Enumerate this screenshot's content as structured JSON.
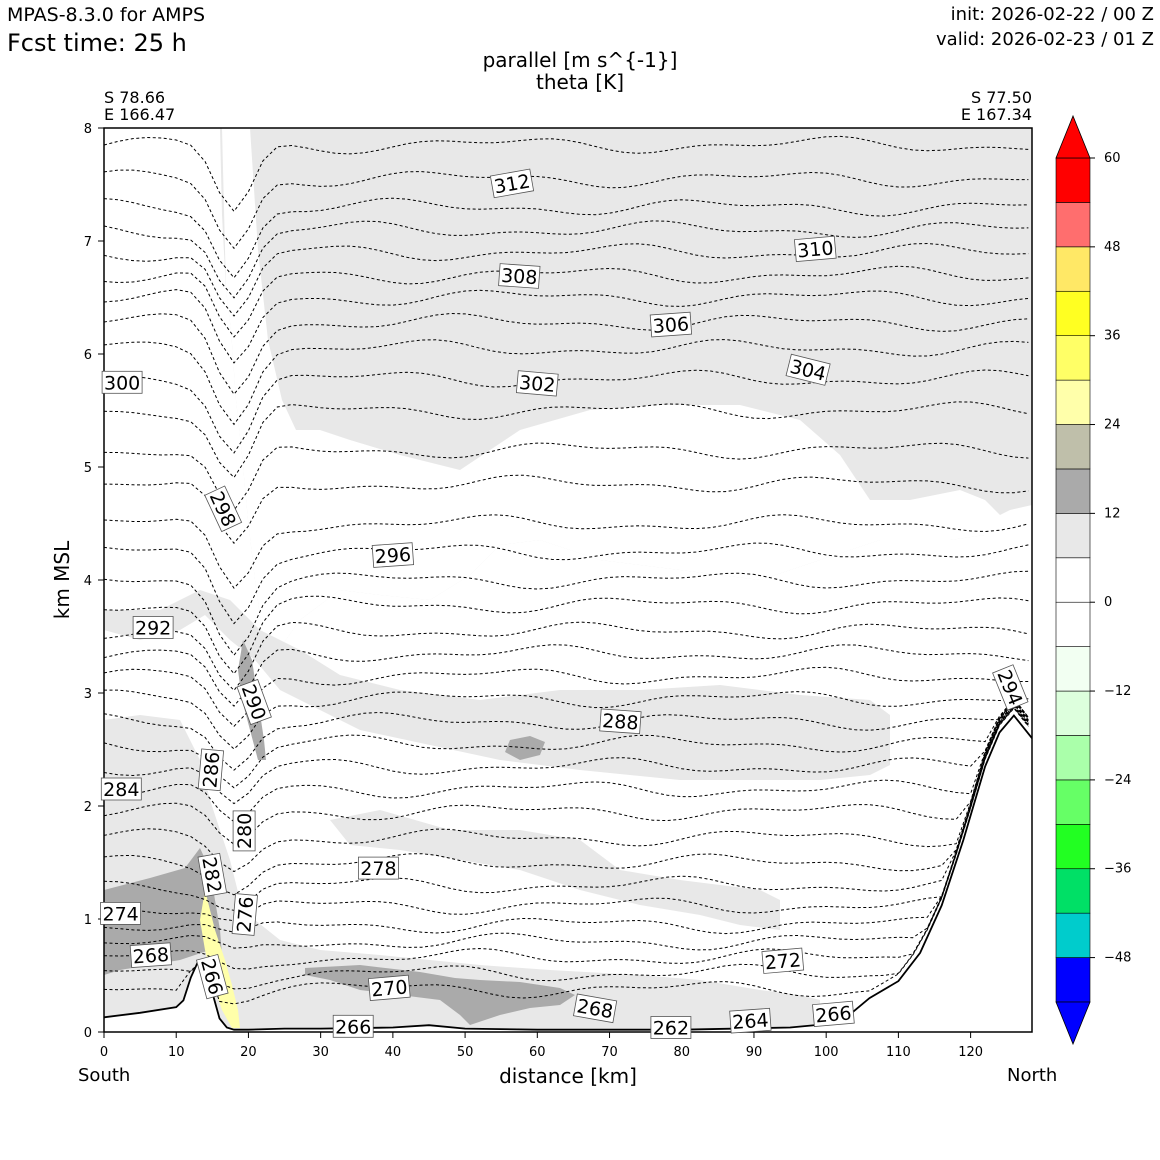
{
  "header": {
    "model": "MPAS-8.3.0 for AMPS",
    "fcst_time": "Fcst time:   25 h",
    "init": "init: 2026-02-22 / 00 Z",
    "valid": "valid: 2026-02-23 / 01 Z"
  },
  "chart_data": {
    "type": "contour",
    "title": "parallel [m s^{-1}]",
    "subtitle": "theta [K]",
    "xlabel": "distance [km]",
    "ylabel": "km MSL",
    "xlim": [
      0,
      128.5
    ],
    "ylim": [
      0,
      8
    ],
    "xticks": [
      0,
      10,
      20,
      30,
      40,
      50,
      60,
      70,
      80,
      90,
      100,
      110,
      120
    ],
    "yticks": [
      0,
      1,
      2,
      3,
      4,
      5,
      6,
      7,
      8
    ],
    "endpoints": {
      "left": {
        "lat": "S 78.66",
        "lon": "E 166.47",
        "direction": "South"
      },
      "right": {
        "lat": "S 77.50",
        "lon": "E 167.34",
        "direction": "North"
      }
    },
    "colorbar": {
      "ticks": [
        "60",
        "48",
        "36",
        "24",
        "12",
        "0",
        "−12",
        "−24",
        "−36",
        "−48"
      ],
      "tick_values": [
        60,
        48,
        36,
        24,
        12,
        0,
        -12,
        -24,
        -36,
        -48
      ],
      "levels": [
        -54,
        -48,
        -42,
        -36,
        -30,
        -24,
        -18,
        -12,
        -6,
        0,
        6,
        12,
        18,
        24,
        30,
        36,
        42,
        48,
        54,
        60
      ],
      "colors": [
        "#0000ff",
        "#00cccc",
        "#00e066",
        "#22ff22",
        "#66ff66",
        "#aaffaa",
        "#ddffdd",
        "#f2fff2",
        "#ffffff",
        "#ffffff",
        "#e8e8e8",
        "#aaaaaa",
        "#bfbfaa",
        "#ffffaa",
        "#ffff66",
        "#ffff22",
        "#ffe866",
        "#ff6e6e",
        "#ff0000"
      ],
      "extend_low": "#0000ff",
      "extend_high": "#ff0000"
    },
    "terrain": [
      [
        0,
        0.13
      ],
      [
        5,
        0.17
      ],
      [
        10,
        0.22
      ],
      [
        11,
        0.28
      ],
      [
        12,
        0.48
      ],
      [
        13,
        0.62
      ],
      [
        14,
        0.58
      ],
      [
        15,
        0.35
      ],
      [
        16,
        0.12
      ],
      [
        17,
        0.04
      ],
      [
        18,
        0.02
      ],
      [
        20,
        0.02
      ],
      [
        25,
        0.03
      ],
      [
        30,
        0.03
      ],
      [
        40,
        0.04
      ],
      [
        45,
        0.06
      ],
      [
        50,
        0.03
      ],
      [
        60,
        0.02
      ],
      [
        80,
        0.02
      ],
      [
        95,
        0.04
      ],
      [
        100,
        0.07
      ],
      [
        103,
        0.14
      ],
      [
        106,
        0.3
      ],
      [
        110,
        0.45
      ],
      [
        113,
        0.7
      ],
      [
        116,
        1.12
      ],
      [
        119,
        1.7
      ],
      [
        122,
        2.35
      ],
      [
        124,
        2.65
      ],
      [
        126,
        2.8
      ],
      [
        128.5,
        2.6
      ]
    ],
    "theta_labels": [
      {
        "value": "312",
        "x": 56.5,
        "y": 7.51,
        "angle": -10
      },
      {
        "value": "310",
        "x": 98.5,
        "y": 6.93,
        "angle": -5
      },
      {
        "value": "308",
        "x": 57.5,
        "y": 6.69,
        "angle": 4
      },
      {
        "value": "306",
        "x": 78.5,
        "y": 6.26,
        "angle": -4
      },
      {
        "value": "304",
        "x": 97.5,
        "y": 5.86,
        "angle": 14
      },
      {
        "value": "302",
        "x": 60.0,
        "y": 5.74,
        "angle": 5
      },
      {
        "value": "300",
        "x": 2.5,
        "y": 5.75,
        "angle": 0
      },
      {
        "value": "298",
        "x": 16.5,
        "y": 4.63,
        "angle": 65
      },
      {
        "value": "296",
        "x": 40.0,
        "y": 4.22,
        "angle": -4
      },
      {
        "value": "294",
        "x": 125.5,
        "y": 3.05,
        "angle": 68
      },
      {
        "value": "292",
        "x": 6.8,
        "y": 3.58,
        "angle": 0
      },
      {
        "value": "290",
        "x": 20.8,
        "y": 2.92,
        "angle": 70
      },
      {
        "value": "288",
        "x": 71.5,
        "y": 2.75,
        "angle": 4
      },
      {
        "value": "286",
        "x": 14.8,
        "y": 2.32,
        "angle": -85
      },
      {
        "value": "284",
        "x": 2.4,
        "y": 2.15,
        "angle": 0
      },
      {
        "value": "282",
        "x": 15.0,
        "y": 1.39,
        "angle": 80
      },
      {
        "value": "280",
        "x": 19.4,
        "y": 1.78,
        "angle": -90
      },
      {
        "value": "278",
        "x": 38.0,
        "y": 1.45,
        "angle": 0
      },
      {
        "value": "276",
        "x": 19.5,
        "y": 1.04,
        "angle": -85
      },
      {
        "value": "274",
        "x": 2.3,
        "y": 1.05,
        "angle": 0
      },
      {
        "value": "272",
        "x": 94.0,
        "y": 0.63,
        "angle": -5
      },
      {
        "value": "270",
        "x": 39.5,
        "y": 0.39,
        "angle": -5
      },
      {
        "value": "268",
        "x": 6.5,
        "y": 0.68,
        "angle": -4
      },
      {
        "value": "268",
        "x": 68.0,
        "y": 0.21,
        "angle": 10
      },
      {
        "value": "266",
        "x": 15.0,
        "y": 0.49,
        "angle": 75
      },
      {
        "value": "266",
        "x": 34.5,
        "y": 0.05,
        "angle": 0
      },
      {
        "value": "266",
        "x": 101.0,
        "y": 0.16,
        "angle": -5
      },
      {
        "value": "264",
        "x": 89.5,
        "y": 0.1,
        "angle": -4
      },
      {
        "value": "262",
        "x": 78.5,
        "y": 0.04,
        "angle": 0
      }
    ]
  }
}
